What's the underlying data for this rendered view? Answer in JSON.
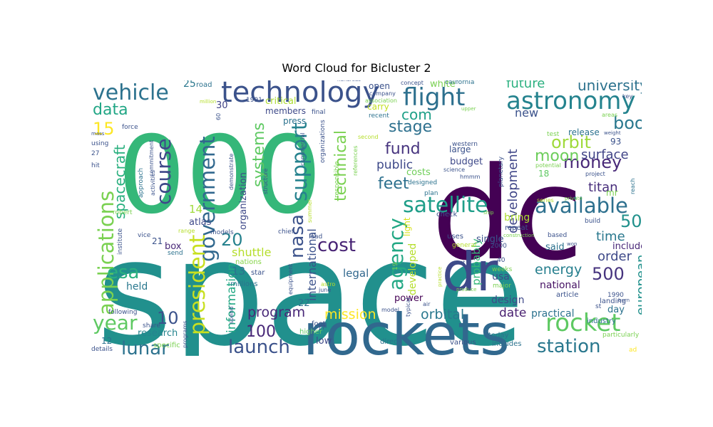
{
  "chart_data": {
    "type": "wordcloud",
    "title": "Word Cloud for Bicluster 2",
    "words": [
      {
        "text": "space",
        "color": "#21908d"
      },
      {
        "text": "000",
        "color": "#35b779"
      },
      {
        "text": "dc",
        "color": "#440154"
      },
      {
        "text": "rockets",
        "color": "#31688e"
      },
      {
        "text": "dr",
        "color": "#3e4989"
      },
      {
        "text": "technology",
        "color": "#3b528b"
      },
      {
        "text": "astronomy",
        "color": "#25838e"
      },
      {
        "text": "flight",
        "color": "#2d708e"
      },
      {
        "text": "vehicle",
        "color": "#2c728e"
      },
      {
        "text": "rocket",
        "color": "#5ec962"
      },
      {
        "text": "applications",
        "color": "#7ad151"
      },
      {
        "text": "satellite",
        "color": "#1f9e89"
      },
      {
        "text": "available",
        "color": "#2d708e"
      },
      {
        "text": "government",
        "color": "#31688e"
      },
      {
        "text": "course",
        "color": "#3e4989"
      },
      {
        "text": "president",
        "color": "#c8e020"
      },
      {
        "text": "support",
        "color": "#26828e"
      },
      {
        "text": "nasa",
        "color": "#3b528b"
      },
      {
        "text": "launch",
        "color": "#3b528b"
      },
      {
        "text": "station",
        "color": "#2a788e"
      },
      {
        "text": "lunar",
        "color": "#2c728e"
      },
      {
        "text": "year",
        "color": "#5ec962"
      },
      {
        "text": "agency",
        "color": "#22a884"
      },
      {
        "text": "cost",
        "color": "#482475"
      },
      {
        "text": "esa",
        "color": "#2ab07f"
      },
      {
        "text": "data",
        "color": "#21a685"
      },
      {
        "text": "university",
        "color": "#2c728e"
      },
      {
        "text": "book",
        "color": "#2a788e"
      },
      {
        "text": "money",
        "color": "#482878"
      },
      {
        "text": "orbit",
        "color": "#9fda3a"
      },
      {
        "text": "moon",
        "color": "#6ccd5a"
      },
      {
        "text": "feet",
        "color": "#2d708e"
      },
      {
        "text": "stage",
        "color": "#2d708e"
      },
      {
        "text": "fund",
        "color": "#46337e"
      },
      {
        "text": "com",
        "color": "#1fa088"
      },
      {
        "text": "technical",
        "color": "#7ad151"
      },
      {
        "text": "systems",
        "color": "#5ec962"
      },
      {
        "text": "spacecraft",
        "color": "#2ab07f"
      },
      {
        "text": "mission",
        "color": "#fde725"
      },
      {
        "text": "program",
        "color": "#482878"
      },
      {
        "text": "orbital",
        "color": "#2a788e"
      },
      {
        "text": "energy",
        "color": "#277f8e"
      },
      {
        "text": "european",
        "color": "#21918c"
      },
      {
        "text": "future",
        "color": "#2ab07f"
      },
      {
        "text": "development",
        "color": "#404688"
      },
      {
        "text": "titan",
        "color": "#472d7b"
      },
      {
        "text": "surface",
        "color": "#414487"
      },
      {
        "text": "public",
        "color": "#3e4989"
      },
      {
        "text": "information",
        "color": "#22a884"
      },
      {
        "text": "international",
        "color": "#3b528b"
      },
      {
        "text": "shuttle",
        "color": "#b5de2b"
      },
      {
        "text": "organization",
        "color": "#3e4989"
      },
      {
        "text": "order",
        "color": "#3e4989"
      },
      {
        "text": "time",
        "color": "#2a788e"
      },
      {
        "text": "date",
        "color": "#481f70"
      },
      {
        "text": "practical",
        "color": "#2c728e"
      },
      {
        "text": "national",
        "color": "#471365"
      },
      {
        "text": "legal",
        "color": "#31688e"
      },
      {
        "text": "new",
        "color": "#3b528b"
      },
      {
        "text": "research",
        "color": "#25848e"
      },
      {
        "text": "costs",
        "color": "#6ece58"
      },
      {
        "text": "probably",
        "color": "#35b779"
      },
      {
        "text": "developed",
        "color": "#b5de2b"
      },
      {
        "text": "design",
        "color": "#3e4989"
      },
      {
        "text": "usa",
        "color": "#3e4989"
      },
      {
        "text": "said",
        "color": "#2c728e"
      },
      {
        "text": "include",
        "color": "#482677"
      },
      {
        "text": "day",
        "color": "#2c728e"
      },
      {
        "text": "power",
        "color": "#440154"
      },
      {
        "text": "held",
        "color": "#2a788e"
      },
      {
        "text": "box",
        "color": "#482878"
      },
      {
        "text": "atlas",
        "color": "#3e4989"
      },
      {
        "text": "bring",
        "color": "#addc30"
      },
      {
        "text": "single",
        "color": "#3b528b"
      },
      {
        "text": "release",
        "color": "#2c728e"
      },
      {
        "text": "budget",
        "color": "#3e4989"
      },
      {
        "text": "large",
        "color": "#3b528b"
      },
      {
        "text": "white",
        "color": "#7ad151"
      },
      {
        "text": "open",
        "color": "#3b528b"
      },
      {
        "text": "carry",
        "color": "#c2df23"
      },
      {
        "text": "critical",
        "color": "#addc30"
      },
      {
        "text": "members",
        "color": "#3e4989"
      },
      {
        "text": "press",
        "color": "#2c728e"
      },
      {
        "text": "low",
        "color": "#3e4989"
      },
      {
        "text": "light",
        "color": "#d8e219"
      },
      {
        "text": "mr",
        "color": "#7ad151"
      },
      {
        "text": "millions",
        "color": "#2c728e"
      },
      {
        "text": "nations",
        "color": "#86d549"
      },
      {
        "text": "star",
        "color": "#3b528b"
      },
      {
        "text": "15",
        "color": "#fde725"
      },
      {
        "text": "10",
        "color": "#3b528b"
      },
      {
        "text": "100",
        "color": "#482878"
      },
      {
        "text": "500",
        "color": "#46337e"
      },
      {
        "text": "50",
        "color": "#21918c"
      },
      {
        "text": "20",
        "color": "#26828e"
      },
      {
        "text": "14",
        "color": "#9fda3a"
      },
      {
        "text": "13",
        "color": "#2c728e"
      },
      {
        "text": "25",
        "color": "#2a788e"
      },
      {
        "text": "30",
        "color": "#414487"
      },
      {
        "text": "22",
        "color": "#2c728e"
      },
      {
        "text": "21",
        "color": "#3b528b"
      },
      {
        "text": "12",
        "color": "#2c728e"
      },
      {
        "text": "18",
        "color": "#5ec962"
      },
      {
        "text": "93",
        "color": "#3b528b"
      },
      {
        "text": "road",
        "color": "#2c728e"
      },
      {
        "text": "today",
        "color": "#2c728e"
      },
      {
        "text": "various",
        "color": "#3b528b"
      },
      {
        "text": "includes",
        "color": "#2c728e"
      },
      {
        "text": "direct",
        "color": "#2c728e"
      },
      {
        "text": "higher",
        "color": "#5ec962"
      },
      {
        "text": "foot",
        "color": "#3b528b"
      },
      {
        "text": "specific",
        "color": "#7ad151"
      },
      {
        "text": "details",
        "color": "#3b528b"
      },
      {
        "text": "particularly",
        "color": "#7ad151"
      },
      {
        "text": "industry",
        "color": "#2c728e"
      },
      {
        "text": "landing",
        "color": "#3b528b"
      },
      {
        "text": "weeks",
        "color": "#7ad151"
      },
      {
        "text": "major",
        "color": "#7ad151"
      },
      {
        "text": "article",
        "color": "#3b528b"
      },
      {
        "text": "produce",
        "color": "#7ad151"
      },
      {
        "text": "uses",
        "color": "#3b528b"
      },
      {
        "text": "general",
        "color": "#b5de2b"
      },
      {
        "text": "repeat",
        "color": "#3b528b"
      },
      {
        "text": "construction",
        "color": "#7ad151"
      },
      {
        "text": "check",
        "color": "#3b528b"
      },
      {
        "text": "ship",
        "color": "#7ad151"
      },
      {
        "text": "plan",
        "color": "#2c728e"
      },
      {
        "text": "lead",
        "color": "#3b528b"
      },
      {
        "text": "designed",
        "color": "#2c728e"
      },
      {
        "text": "chief",
        "color": "#3b528b"
      },
      {
        "text": "models",
        "color": "#3b528b"
      },
      {
        "text": "range",
        "color": "#b5de2b"
      },
      {
        "text": "send",
        "color": "#2c728e"
      },
      {
        "text": "vice",
        "color": "#3b528b"
      },
      {
        "text": "institute",
        "color": "#3b528b"
      },
      {
        "text": "robert",
        "color": "#7ad151"
      },
      {
        "text": "approach",
        "color": "#2c728e"
      },
      {
        "text": "commitment",
        "color": "#3b528b"
      },
      {
        "text": "using",
        "color": "#3b528b"
      },
      {
        "text": "hit",
        "color": "#3b528b"
      },
      {
        "text": "27",
        "color": "#3b528b"
      },
      {
        "text": "mass",
        "color": "#3b528b"
      },
      {
        "text": "force",
        "color": "#3b528b"
      },
      {
        "text": "million",
        "color": "#b5de2b"
      },
      {
        "text": "1991",
        "color": "#3b528b"
      },
      {
        "text": "final",
        "color": "#3b528b"
      },
      {
        "text": "recent",
        "color": "#2c728e"
      },
      {
        "text": "second",
        "color": "#b5de2b"
      },
      {
        "text": "company",
        "color": "#3b528b"
      },
      {
        "text": "association",
        "color": "#7ad151"
      },
      {
        "text": "concept",
        "color": "#3b528b"
      },
      {
        "text": "california",
        "color": "#2c728e"
      },
      {
        "text": "upper",
        "color": "#7ad151"
      },
      {
        "text": "western",
        "color": "#3b528b"
      },
      {
        "text": "planetary",
        "color": "#3b528b"
      },
      {
        "text": "test",
        "color": "#7ad151"
      },
      {
        "text": "potential",
        "color": "#7ad151"
      },
      {
        "text": "project",
        "color": "#3b528b"
      },
      {
        "text": "areas",
        "color": "#7ad151"
      },
      {
        "text": "weight",
        "color": "#3b528b"
      },
      {
        "text": "key",
        "color": "#3b528b"
      },
      {
        "text": "reach",
        "color": "#2c728e"
      },
      {
        "text": "series",
        "color": "#b5de2b"
      },
      {
        "text": "private",
        "color": "#7ad151"
      },
      {
        "text": "build",
        "color": "#3b528b"
      },
      {
        "text": "based",
        "color": "#3b528b"
      },
      {
        "text": "won",
        "color": "#3b528b"
      },
      {
        "text": "1990",
        "color": "#3b528b"
      },
      {
        "text": "burn",
        "color": "#3b528b"
      },
      {
        "text": "st",
        "color": "#3b528b"
      },
      {
        "text": "ad",
        "color": "#fde725"
      },
      {
        "text": "hundreds",
        "color": "#3b528b"
      },
      {
        "text": "commercial",
        "color": "#3b528b"
      },
      {
        "text": "organizations",
        "color": "#3b528b"
      },
      {
        "text": "responsible",
        "color": "#7ad151"
      },
      {
        "text": "references",
        "color": "#7ad151"
      },
      {
        "text": "science",
        "color": "#3b528b"
      },
      {
        "text": "hmmm",
        "color": "#3b528b"
      },
      {
        "text": "summer",
        "color": "#b5de2b"
      },
      {
        "text": "structure",
        "color": "#3b528b"
      },
      {
        "text": "demonstrate",
        "color": "#3b528b"
      },
      {
        "text": "activities",
        "color": "#3b528b"
      },
      {
        "text": "equipment",
        "color": "#3b528b"
      },
      {
        "text": "astro",
        "color": "#b5de2b"
      },
      {
        "text": "june",
        "color": "#3b528b"
      },
      {
        "text": "typical",
        "color": "#3b528b"
      },
      {
        "text": "air",
        "color": "#3b528b"
      },
      {
        "text": "model",
        "color": "#3b528b"
      },
      {
        "text": "went",
        "color": "#3b528b"
      },
      {
        "text": "practice",
        "color": "#b5de2b"
      },
      {
        "text": "2000",
        "color": "#3b528b"
      },
      {
        "text": "40",
        "color": "#3b528b"
      },
      {
        "text": "17",
        "color": "#3b528b"
      },
      {
        "text": "60",
        "color": "#3b528b"
      },
      {
        "text": "following",
        "color": "#3b528b"
      },
      {
        "text": "share",
        "color": "#3b528b"
      },
      {
        "text": "programs",
        "color": "#3b528b"
      },
      {
        "text": "spend",
        "color": "#3b528b"
      },
      {
        "text": "19",
        "color": "#7ad151"
      }
    ]
  }
}
